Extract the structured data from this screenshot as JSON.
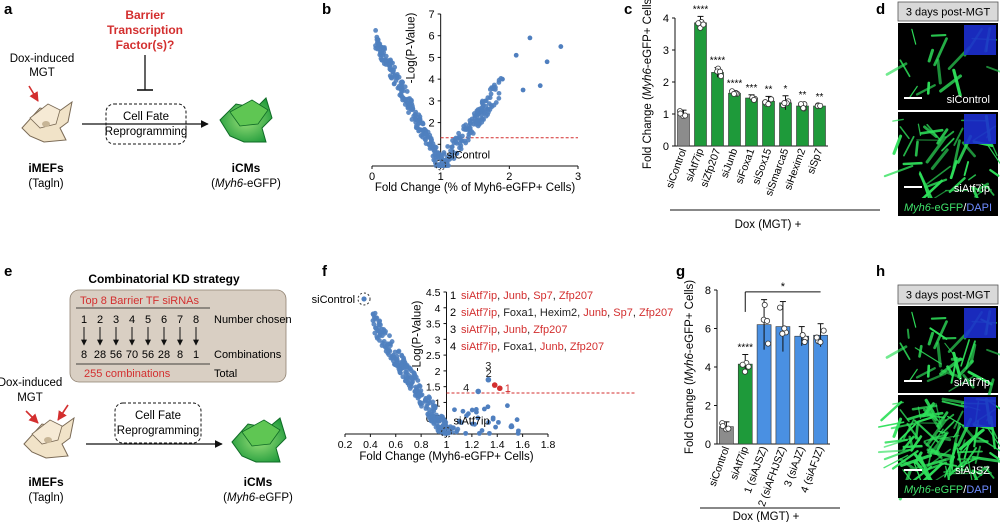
{
  "panels": {
    "a": {
      "letter": "a",
      "dox": [
        "Dox-induced",
        "MGT"
      ],
      "barrier": [
        "Barrier",
        "Transcription",
        "Factor(s)?"
      ],
      "cell_fate": [
        "Cell Fate",
        "Reprogramming"
      ],
      "imefs": "iMEFs",
      "tagln": "(Tagln)",
      "icms": "iCMs",
      "myh6_italic": "Myh6",
      "egfp": "-eGFP)",
      "paren_open": "("
    },
    "b": {
      "letter": "b",
      "sicontrol": "siControl"
    },
    "c": {
      "letter": "c",
      "dox": "Dox (MGT) +"
    },
    "d": {
      "letter": "d",
      "header": "3 days post-MGT",
      "label1": "siControl",
      "label2": "siAtf7ip",
      "legend_myh6": "Myh6",
      "legend_egfp": "-eGFP",
      "legend_sep": "/",
      "legend_dapi": "DAPI"
    },
    "e": {
      "letter": "e",
      "title": "Combinatorial KD strategy",
      "top8": "Top 8  Barrier TF siRNAs",
      "numbers": [
        "1",
        "2",
        "3",
        "4",
        "5",
        "6",
        "7",
        "8"
      ],
      "number_chosen": "Number chosen",
      "combos": [
        "8",
        "28",
        "56",
        "70",
        "56",
        "28",
        "8",
        "1"
      ],
      "combinations": "Combinations",
      "total_combos": "255 combinations",
      "total": "Total",
      "dox": [
        "Dox-induced",
        "MGT"
      ],
      "cell_fate": [
        "Cell Fate",
        "Reprogramming"
      ],
      "imefs": "iMEFs",
      "tagln": "(Tagln)",
      "icms": "iCMs",
      "myh6_italic": "Myh6",
      "egfp": "-eGFP)",
      "paren_open": "("
    },
    "f": {
      "letter": "f",
      "sicontrol": "siControl",
      "siatf7ip": "siAtf7ip",
      "labels": [
        "1",
        "2",
        "3",
        "4"
      ],
      "legend": [
        {
          "num": "1",
          "parts": [
            {
              "t": "siAtf7ip",
              "c": "#d32f2f"
            },
            {
              "t": ", ",
              "c": "#222"
            },
            {
              "t": "Junb",
              "c": "#d32f2f"
            },
            {
              "t": ", ",
              "c": "#222"
            },
            {
              "t": "Sp7",
              "c": "#d32f2f"
            },
            {
              "t": ", ",
              "c": "#222"
            },
            {
              "t": "Zfp207",
              "c": "#d32f2f"
            }
          ]
        },
        {
          "num": "2",
          "parts": [
            {
              "t": "siAtf7ip",
              "c": "#d32f2f"
            },
            {
              "t": ", Foxa1, Hexim2, ",
              "c": "#222"
            },
            {
              "t": "Junb",
              "c": "#d32f2f"
            },
            {
              "t": ", ",
              "c": "#222"
            },
            {
              "t": "Sp7",
              "c": "#d32f2f"
            },
            {
              "t": ", ",
              "c": "#222"
            },
            {
              "t": "Zfp207",
              "c": "#d32f2f"
            }
          ]
        },
        {
          "num": "3",
          "parts": [
            {
              "t": "siAtf7ip",
              "c": "#d32f2f"
            },
            {
              "t": ", ",
              "c": "#222"
            },
            {
              "t": "Junb",
              "c": "#d32f2f"
            },
            {
              "t": ", ",
              "c": "#222"
            },
            {
              "t": "Zfp207",
              "c": "#d32f2f"
            }
          ]
        },
        {
          "num": "4",
          "parts": [
            {
              "t": "siAtf7ip",
              "c": "#d32f2f"
            },
            {
              "t": ", Foxa1, ",
              "c": "#222"
            },
            {
              "t": "Junb",
              "c": "#d32f2f"
            },
            {
              "t": ", ",
              "c": "#222"
            },
            {
              "t": "Zfp207",
              "c": "#d32f2f"
            }
          ]
        }
      ]
    },
    "g": {
      "letter": "g",
      "dox": "Dox (MGT) +"
    },
    "h": {
      "letter": "h",
      "header": "3 days post-MGT",
      "label1": "siAtf7ip",
      "label2": "siAJSZ",
      "legend_myh6": "Myh6",
      "legend_egfp": "-eGFP",
      "legend_sep": "/",
      "legend_dapi": "DAPI"
    }
  },
  "colors": {
    "green": "#1e9a3a",
    "blue": "#4a90e2",
    "gray": "#8c8c8c",
    "red": "#d32f2f",
    "scatter": "#4f7fbf",
    "box": "#d9cfc3"
  },
  "chart_data": [
    {
      "id": "b",
      "type": "scatter",
      "xlabel": "Fold Change (% of Myh6-eGFP+ Cells)",
      "ylabel": "-Log(P-Value)",
      "xlim": [
        0,
        3
      ],
      "ylim": [
        0,
        7
      ],
      "xticks": [
        "0",
        "1",
        "2",
        "3"
      ],
      "yticks": [
        "0",
        "1",
        "2",
        "3",
        "4",
        "5",
        "6",
        "7"
      ],
      "threshold_y": 1.3
    },
    {
      "id": "c",
      "type": "bar",
      "ylabel_parts": [
        "Fold Change (",
        "Myh6",
        "-eGFP+ Cells)"
      ],
      "categories": [
        "siControl",
        "siAtf7ip",
        "siZfp207",
        "siJunb",
        "siFoxa1",
        "siSox15",
        "siSmarca5",
        "siHexim2",
        "siSp7"
      ],
      "values": [
        1.0,
        3.85,
        2.3,
        1.65,
        1.5,
        1.4,
        1.35,
        1.25,
        1.25
      ],
      "errors": [
        0.12,
        0.2,
        0.15,
        0.08,
        0.1,
        0.15,
        0.22,
        0.12,
        0.06
      ],
      "sig": [
        "",
        "****",
        "****",
        "****",
        "***",
        "**",
        "*",
        "**",
        "**"
      ],
      "ylim": [
        0,
        4
      ],
      "yticks": [
        "0",
        "1",
        "2",
        "3",
        "4"
      ]
    },
    {
      "id": "f",
      "type": "scatter",
      "xlabel": "Fold Change (Myh6-eGFP+ Cells)",
      "ylabel": "-Log(P-Value)",
      "xlim": [
        0.2,
        1.8
      ],
      "ylim": [
        0,
        4.5
      ],
      "xticks": [
        "0.2",
        "0.4",
        "0.6",
        "0.8",
        "1",
        "1.2",
        "1.4",
        "1.6",
        "1.8"
      ],
      "yticks": [
        "0",
        "0.5",
        "1",
        "1.5",
        "2",
        "2.5",
        "3",
        "3.5",
        "4",
        "4.5"
      ],
      "threshold_y": 1.3,
      "labeled_points": [
        {
          "label": "1",
          "x": 1.42,
          "y": 1.45,
          "color": "#d32f2f"
        },
        {
          "label": "2",
          "x": 1.38,
          "y": 1.55,
          "color": "#d32f2f"
        },
        {
          "label": "3",
          "x": 1.33,
          "y": 1.72,
          "color": "#4f7fbf"
        },
        {
          "label": "4",
          "x": 1.25,
          "y": 1.35,
          "color": "#4f7fbf"
        }
      ]
    },
    {
      "id": "g",
      "type": "bar",
      "ylabel_parts": [
        "Fold Change (",
        "Myh6",
        "-eGFP+ Cells)"
      ],
      "categories": [
        "siControl",
        "siAtf7ip",
        "1 (siAJSZ)",
        "2 (siAFHJSZ)",
        "3 (siAJZ)",
        "4 (siAFJZ)"
      ],
      "values": [
        0.9,
        4.15,
        6.2,
        6.1,
        5.6,
        5.65
      ],
      "errors": [
        0.25,
        0.5,
        1.3,
        1.3,
        0.5,
        0.6
      ],
      "sig": [
        "",
        "****",
        "",
        "",
        "",
        ""
      ],
      "bracket_sig": "*",
      "ylim": [
        0,
        8
      ],
      "yticks": [
        "0",
        "2",
        "4",
        "6",
        "8"
      ]
    }
  ]
}
